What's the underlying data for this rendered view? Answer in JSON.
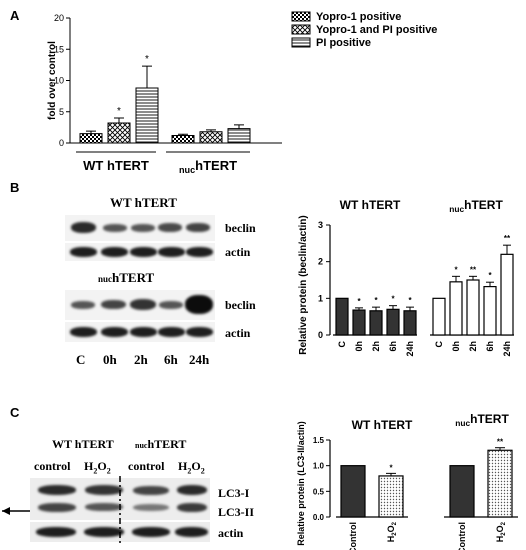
{
  "panels": {
    "a": "A",
    "b": "B",
    "c": "C"
  },
  "chart_data": [
    {
      "type": "bar",
      "title": "",
      "ylabel": "fold over control",
      "ylim": [
        0,
        20
      ],
      "yticks": [
        "0",
        "5",
        "10",
        "15",
        "20"
      ],
      "groups": [
        "WT hTERT",
        "nuchTERT"
      ],
      "group_labels": [
        {
          "main": "WT hTERT",
          "sub": ""
        },
        {
          "sub": "nuc",
          "main": "hTERT"
        }
      ],
      "series": [
        {
          "name": "Yopro-1 positive",
          "values": [
            1.5,
            1.2
          ],
          "errors": [
            0.4,
            0.2
          ],
          "sig": [
            "",
            ""
          ]
        },
        {
          "name": "Yopro-1 and PI positive",
          "values": [
            3.2,
            1.8
          ],
          "errors": [
            0.8,
            0.3
          ],
          "sig": [
            "*",
            ""
          ]
        },
        {
          "name": "PI positive",
          "values": [
            8.8,
            2.3
          ],
          "errors": [
            3.5,
            0.6
          ],
          "sig": [
            "*",
            ""
          ]
        }
      ],
      "legend_position": "top-right"
    },
    {
      "type": "bar",
      "title": "",
      "ylabel": "Relative protein (beclin/actin)",
      "ylim": [
        0,
        3
      ],
      "yticks": [
        "0",
        "1",
        "2",
        "3"
      ],
      "group_titles": [
        {
          "main": "WT hTERT",
          "sub": ""
        },
        {
          "sub": "nuc",
          "main": "hTERT"
        }
      ],
      "categories": [
        "C",
        "0h",
        "2h",
        "6h",
        "24h"
      ],
      "series": [
        {
          "group": "WT hTERT",
          "fill": "#333333",
          "values": [
            1.0,
            0.68,
            0.66,
            0.7,
            0.66
          ],
          "errors": [
            0.0,
            0.06,
            0.1,
            0.1,
            0.1
          ],
          "sig": [
            "",
            "*",
            "*",
            "*",
            "*"
          ]
        },
        {
          "group": "nuchTERT",
          "fill": "#ffffff",
          "values": [
            1.0,
            1.45,
            1.5,
            1.32,
            2.2
          ],
          "errors": [
            0.0,
            0.15,
            0.1,
            0.12,
            0.25
          ],
          "sig": [
            "",
            "*",
            "**",
            "*",
            "**"
          ]
        }
      ]
    },
    {
      "type": "bar",
      "title": "",
      "ylabel": "Relative protein (LC3-II/actin)",
      "ylim": [
        0,
        1.5
      ],
      "yticks": [
        "0.0",
        "0.5",
        "1.0",
        "1.5"
      ],
      "group_titles": [
        {
          "main": "WT hTERT",
          "sub": ""
        },
        {
          "sub": "nuc",
          "main": "hTERT"
        }
      ],
      "categories": [
        "Control",
        "H2O2",
        "Control",
        "H2O2"
      ],
      "values": [
        1.0,
        0.8,
        1.0,
        1.3
      ],
      "errors": [
        0.0,
        0.05,
        0.0,
        0.05
      ],
      "sig": [
        "",
        "*",
        "",
        "**"
      ],
      "fills": [
        "#333333",
        "#e0e0e0",
        "#333333",
        "#e0e0e0"
      ]
    }
  ],
  "blots": {
    "b_top_title": "WT hTERT",
    "b_bottom_title_sub": "nuc",
    "b_bottom_title_main": "hTERT",
    "beclin": "beclin",
    "actin": "actin",
    "lanes": [
      "C",
      "0h",
      "2h",
      "6h",
      "24h"
    ],
    "c_left_title": "WT hTERT",
    "c_right_title_sub": "nuc",
    "c_right_title_main": "hTERT",
    "c_lanes": [
      "control",
      "H2O2",
      "control",
      "H2O2"
    ],
    "lc3_1": "LC3-I",
    "lc3_2": "LC3-II",
    "c_actin": "actin"
  }
}
